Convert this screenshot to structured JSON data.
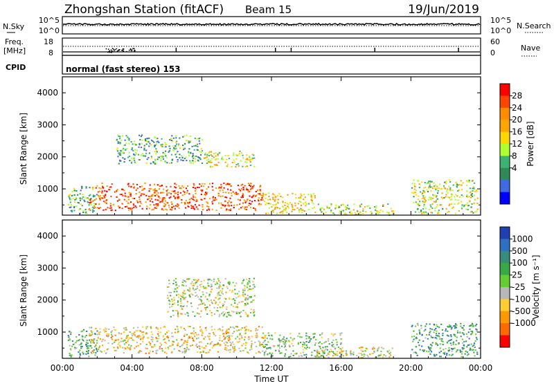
{
  "header": {
    "station": "Zhongshan Station (fitACF)",
    "beam": "Beam 15",
    "date": "19/Jun/2019"
  },
  "noise_panel": {
    "left_label": "N.Sky",
    "left_ticks": [
      "10^5",
      "10^0"
    ],
    "right_ticks": [
      "10^5",
      "10^0"
    ],
    "right_label": "N.Search"
  },
  "freq_panel": {
    "label_line1": "Freq.",
    "label_line2": "[MHz]",
    "left_ticks": [
      "18",
      "8"
    ],
    "right_ticks": [
      "60",
      "0"
    ],
    "right_label": "Nave"
  },
  "cpid_panel": {
    "label": "CPID",
    "text": "normal (fast stereo) 153"
  },
  "x_axis": {
    "label": "Time UT",
    "ticks": [
      "00:00",
      "04:00",
      "08:00",
      "12:00",
      "16:00",
      "20:00",
      "00:00"
    ]
  },
  "power_colorbar": {
    "label": "Power [dB]",
    "ticks": [
      "28",
      "24",
      "20",
      "16",
      "12",
      "8",
      "4"
    ],
    "colors": [
      "#ff0000",
      "#ff4500",
      "#ff8c00",
      "#ffa500",
      "#ffd700",
      "#adff2f",
      "#3cb371",
      "#2e8b57",
      "#4169e1",
      "#0000ff"
    ]
  },
  "velocity_colorbar": {
    "label": "Velocity [m s⁻¹]",
    "ticks": [
      "1000",
      "500",
      "100",
      "25",
      "-25",
      "-100",
      "-500",
      "-1000"
    ],
    "colors": [
      "#1f3fb3",
      "#2f6fbf",
      "#3a8c7a",
      "#3aa845",
      "#66cc33",
      "#b8b8b8",
      "#ffcc33",
      "#ff9900",
      "#ff6a00",
      "#ff0000"
    ]
  },
  "chart_data": [
    {
      "type": "heatmap",
      "title": "Power",
      "xlabel": "Time UT",
      "ylabel": "Slant Range [km]",
      "xlim": [
        "00:00",
        "24:00"
      ],
      "ylim": [
        180,
        4500
      ],
      "yticks": [
        1000,
        2000,
        3000,
        4000
      ],
      "colorbar_label": "Power [dB]",
      "colorbar_range": [
        0,
        30
      ],
      "regions": [
        {
          "t_start": 0.3,
          "t_end": 2.0,
          "r_min": 250,
          "r_max": 1100,
          "power": 10
        },
        {
          "t_start": 1.5,
          "t_end": 11.5,
          "r_min": 350,
          "r_max": 1200,
          "power": 26
        },
        {
          "t_start": 3.0,
          "t_end": 8.0,
          "r_min": 1800,
          "r_max": 2700,
          "power": 9
        },
        {
          "t_start": 8.0,
          "t_end": 11.0,
          "r_min": 1700,
          "r_max": 2200,
          "power": 16
        },
        {
          "t_start": 11.5,
          "t_end": 14.5,
          "r_min": 250,
          "r_max": 900,
          "power": 18
        },
        {
          "t_start": 14.5,
          "t_end": 19.0,
          "r_min": 200,
          "r_max": 550,
          "power": 14
        },
        {
          "t_start": 20.0,
          "t_end": 23.8,
          "r_min": 250,
          "r_max": 1300,
          "power": 14
        }
      ]
    },
    {
      "type": "heatmap",
      "title": "Velocity",
      "xlabel": "Time UT",
      "ylabel": "Slant Range [km]",
      "xlim": [
        "00:00",
        "24:00"
      ],
      "ylim": [
        180,
        4500
      ],
      "yticks": [
        1000,
        2000,
        3000,
        4000
      ],
      "colorbar_label": "Velocity [m s⁻¹]",
      "colorbar_range": [
        -1000,
        1000
      ],
      "regions": [
        {
          "t_start": 0.3,
          "t_end": 2.0,
          "r_min": 250,
          "r_max": 1100,
          "velocity": 300
        },
        {
          "t_start": 1.5,
          "t_end": 11.5,
          "r_min": 350,
          "r_max": 1200,
          "velocity": -300
        },
        {
          "t_start": 6.0,
          "t_end": 11.0,
          "r_min": 1500,
          "r_max": 2700,
          "velocity": -80
        },
        {
          "t_start": 11.5,
          "t_end": 16.0,
          "r_min": 250,
          "r_max": 1000,
          "velocity": 120
        },
        {
          "t_start": 14.5,
          "t_end": 19.0,
          "r_min": 200,
          "r_max": 550,
          "velocity": -200
        },
        {
          "t_start": 20.0,
          "t_end": 23.8,
          "r_min": 250,
          "r_max": 1300,
          "velocity": 400
        }
      ]
    }
  ]
}
